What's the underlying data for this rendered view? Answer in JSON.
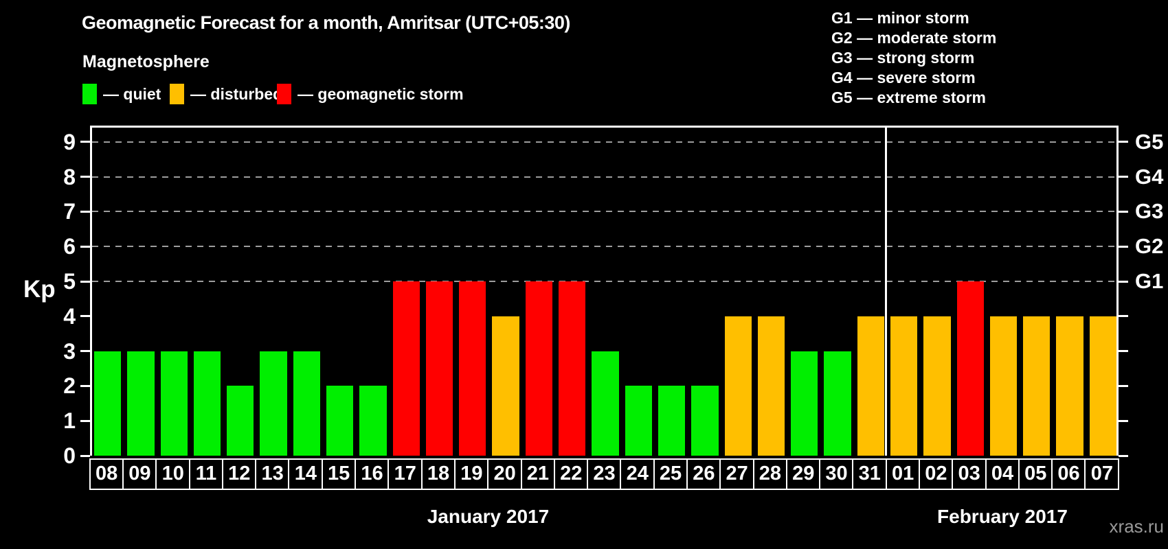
{
  "title": "Geomagnetic Forecast for a month, Amritsar (UTC+05:30)",
  "watermark": "xras.ru",
  "legend": {
    "heading": "Magnetosphere",
    "items": [
      {
        "key": "quiet",
        "label": "— quiet",
        "color": "#00ef00"
      },
      {
        "key": "disturbed",
        "label": "— disturbed",
        "color": "#ffbf00"
      },
      {
        "key": "storm",
        "label": "— geomagnetic storm",
        "color": "#ff0000"
      }
    ]
  },
  "storm_scale_legend": [
    "G1 — minor storm",
    "G2 — moderate storm",
    "G3 — strong storm",
    "G4 — severe storm",
    "G5 — extreme storm"
  ],
  "chart_data": {
    "type": "bar",
    "ylabel": "Kp",
    "ylim": [
      0,
      9.3
    ],
    "yticks": [
      0,
      1,
      2,
      3,
      4,
      5,
      6,
      7,
      8,
      9
    ],
    "gridlines_at": [
      5,
      6,
      7,
      8,
      9
    ],
    "grid": "dashed horizontal lines at Kp 5-9 only",
    "legend_position": "top-left",
    "right_axis": [
      {
        "kp": 5,
        "label": "G1"
      },
      {
        "kp": 6,
        "label": "G2"
      },
      {
        "kp": 7,
        "label": "G3"
      },
      {
        "kp": 8,
        "label": "G4"
      },
      {
        "kp": 9,
        "label": "G5"
      }
    ],
    "status_colors": {
      "quiet": "#00ef00",
      "disturbed": "#ffbf00",
      "storm": "#ff0000"
    },
    "months": [
      {
        "label": "January 2017",
        "days": [
          {
            "day": "08",
            "kp": 3,
            "status": "quiet"
          },
          {
            "day": "09",
            "kp": 3,
            "status": "quiet"
          },
          {
            "day": "10",
            "kp": 3,
            "status": "quiet"
          },
          {
            "day": "11",
            "kp": 3,
            "status": "quiet"
          },
          {
            "day": "12",
            "kp": 2,
            "status": "quiet"
          },
          {
            "day": "13",
            "kp": 3,
            "status": "quiet"
          },
          {
            "day": "14",
            "kp": 3,
            "status": "quiet"
          },
          {
            "day": "15",
            "kp": 2,
            "status": "quiet"
          },
          {
            "day": "16",
            "kp": 2,
            "status": "quiet"
          },
          {
            "day": "17",
            "kp": 5,
            "status": "storm"
          },
          {
            "day": "18",
            "kp": 5,
            "status": "storm"
          },
          {
            "day": "19",
            "kp": 5,
            "status": "storm"
          },
          {
            "day": "20",
            "kp": 4,
            "status": "disturbed"
          },
          {
            "day": "21",
            "kp": 5,
            "status": "storm"
          },
          {
            "day": "22",
            "kp": 5,
            "status": "storm"
          },
          {
            "day": "23",
            "kp": 3,
            "status": "quiet"
          },
          {
            "day": "24",
            "kp": 2,
            "status": "quiet"
          },
          {
            "day": "25",
            "kp": 2,
            "status": "quiet"
          },
          {
            "day": "26",
            "kp": 2,
            "status": "quiet"
          },
          {
            "day": "27",
            "kp": 4,
            "status": "disturbed"
          },
          {
            "day": "28",
            "kp": 4,
            "status": "disturbed"
          },
          {
            "day": "29",
            "kp": 3,
            "status": "quiet"
          },
          {
            "day": "30",
            "kp": 3,
            "status": "quiet"
          },
          {
            "day": "31",
            "kp": 4,
            "status": "disturbed"
          }
        ]
      },
      {
        "label": "February 2017",
        "days": [
          {
            "day": "01",
            "kp": 4,
            "status": "disturbed"
          },
          {
            "day": "02",
            "kp": 4,
            "status": "disturbed"
          },
          {
            "day": "03",
            "kp": 5,
            "status": "storm"
          },
          {
            "day": "04",
            "kp": 4,
            "status": "disturbed"
          },
          {
            "day": "05",
            "kp": 4,
            "status": "disturbed"
          },
          {
            "day": "06",
            "kp": 4,
            "status": "disturbed"
          },
          {
            "day": "07",
            "kp": 4,
            "status": "disturbed"
          }
        ]
      }
    ]
  }
}
